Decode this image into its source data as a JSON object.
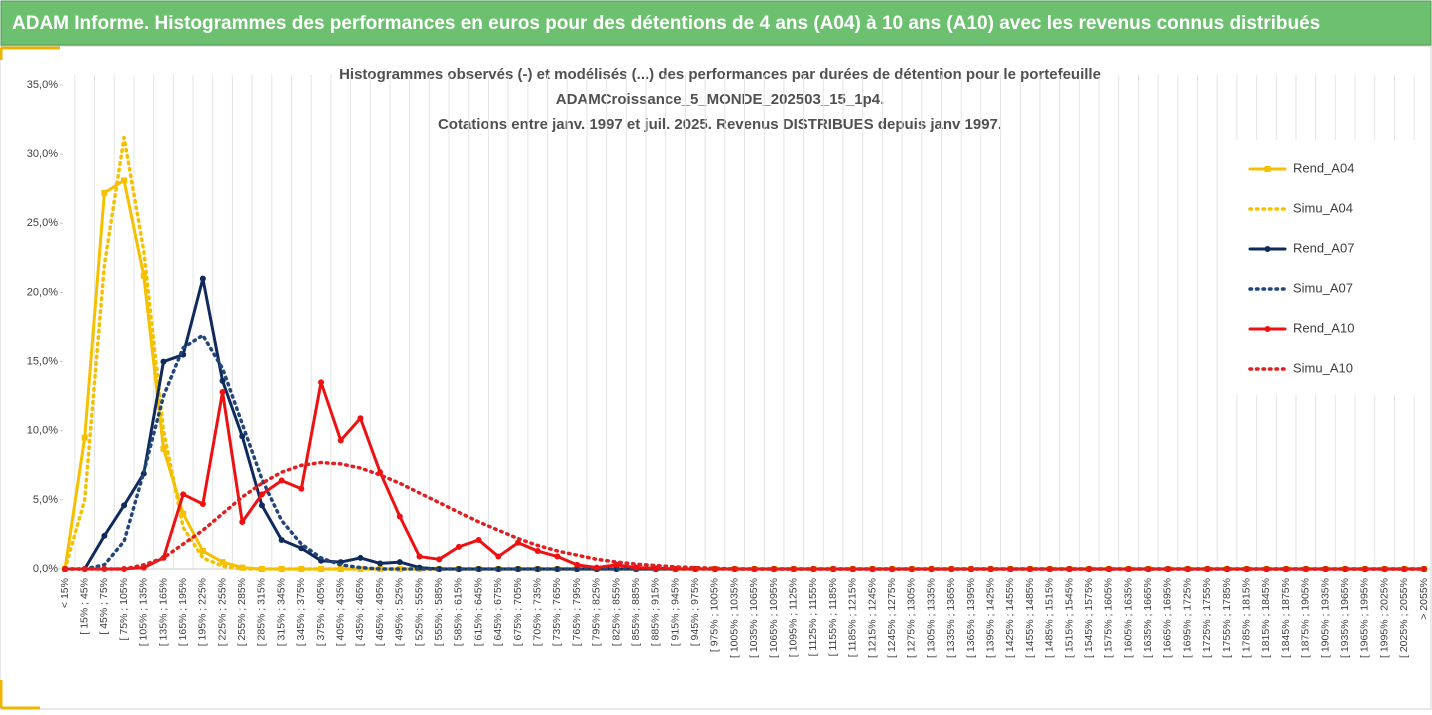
{
  "chart_data": {
    "type": "line",
    "header": "ADAM Informe. Histogrammes des performances en euros pour des détentions de 4 ans (A04) à 10 ans (A10) avec les revenus connus distribués",
    "title": [
      "Histogrammes observés (-) et modélisés (...) des performances par durées de détention pour le portefeuille",
      "ADAMCroissance_5_MONDE_202503_15_1p4.",
      "Cotations entre janv. 1997 et juil. 2025. Revenus DISTRIBUES depuis janv 1997."
    ],
    "categories": [
      "< 15%",
      "[ 15% ; 45%",
      "[ 45% ; 75%",
      "[ 75% ; 105%",
      "[ 105% ; 135%",
      "[ 135% ; 165%",
      "[ 165% ; 195%",
      "[ 195% ; 225%",
      "[ 225% ; 255%",
      "[ 255% ; 285%",
      "[ 285% ; 315%",
      "[ 315% ; 345%",
      "[ 345% ; 375%",
      "[ 375% ; 405%",
      "[ 405% ; 435%",
      "[ 435% ; 465%",
      "[ 465% ; 495%",
      "[ 495% ; 525%",
      "[ 525% ; 555%",
      "[ 555% ; 585%",
      "[ 585% ; 615%",
      "[ 615% ; 645%",
      "[ 645% ; 675%",
      "[ 675% ; 705%",
      "[ 705% ; 735%",
      "[ 735% ; 765%",
      "[ 765% ; 795%",
      "[ 795% ; 825%",
      "[ 825% ; 855%",
      "[ 855% ; 885%",
      "[ 885% ; 915%",
      "[ 915% ; 945%",
      "[ 945% ; 975%",
      "[ 975% ; 1005%",
      "[ 1005% ; 1035%",
      "[ 1035% ; 1065%",
      "[ 1065% ; 1095%",
      "[ 1095% ; 1125%",
      "[ 1125% ; 1155%",
      "[ 1155% ; 1185%",
      "[ 1185% ; 1215%",
      "[ 1215% ; 1245%",
      "[ 1245% ; 1275%",
      "[ 1275% ; 1305%",
      "[ 1305% ; 1335%",
      "[ 1335% ; 1365%",
      "[ 1365% ; 1395%",
      "[ 1395% ; 1425%",
      "[ 1425% ; 1455%",
      "[ 1455% ; 1485%",
      "[ 1485% ; 1515%",
      "[ 1515% ; 1545%",
      "[ 1545% ; 1575%",
      "[ 1575% ; 1605%",
      "[ 1605% ; 1635%",
      "[ 1635% ; 1665%",
      "[ 1665% ; 1695%",
      "[ 1695% ; 1725%",
      "[ 1725% ; 1755%",
      "[ 1755% ; 1785%",
      "[ 1785% ; 1815%",
      "[ 1815% ; 1845%",
      "[ 1845% ; 1875%",
      "[ 1875% ; 1905%",
      "[ 1905% ; 1935%",
      "[ 1935% ; 1965%",
      "[ 1965% ; 1995%",
      "[ 1995% ; 2025%",
      "[ 2025% ; 2055%",
      "> 2055%"
    ],
    "series": [
      {
        "name": "Rend_A04",
        "color": "#f5c000",
        "style": "solid",
        "marker": "square",
        "values": [
          0,
          9.5,
          27.2,
          28.1,
          21.2,
          8.7,
          4.0,
          1.3,
          0.5,
          0.1,
          0,
          0,
          0,
          0,
          0,
          0,
          0,
          0,
          0,
          0,
          0,
          0,
          0,
          0,
          0,
          0,
          0,
          0,
          0,
          0,
          0,
          0,
          0,
          0,
          0,
          0,
          0,
          0,
          0,
          0,
          0,
          0,
          0,
          0,
          0,
          0,
          0,
          0,
          0,
          0,
          0,
          0,
          0,
          0,
          0,
          0,
          0,
          0,
          0,
          0,
          0,
          0,
          0,
          0,
          0,
          0,
          0,
          0,
          0,
          0
        ]
      },
      {
        "name": "Simu_A04",
        "color": "#f5c000",
        "style": "dotted",
        "marker": "none",
        "values": [
          0,
          5,
          22,
          31.2,
          23,
          10,
          3,
          0.8,
          0.2,
          0,
          0,
          0,
          0,
          0,
          0,
          0,
          0,
          0,
          0,
          0,
          0,
          0,
          0,
          0,
          0,
          0,
          0,
          0,
          0,
          0,
          0,
          0,
          0,
          0,
          0,
          0,
          0,
          0,
          0,
          0,
          0,
          0,
          0,
          0,
          0,
          0,
          0,
          0,
          0,
          0,
          0,
          0,
          0,
          0,
          0,
          0,
          0,
          0,
          0,
          0,
          0,
          0,
          0,
          0,
          0,
          0,
          0,
          0,
          0,
          0
        ]
      },
      {
        "name": "Rend_A07",
        "color": "#0f2a5c",
        "style": "solid",
        "marker": "circle",
        "values": [
          0,
          0,
          2.4,
          4.6,
          6.9,
          15.0,
          15.5,
          21.0,
          13.6,
          9.6,
          4.6,
          2.1,
          1.5,
          0.6,
          0.5,
          0.8,
          0.4,
          0.5,
          0.1,
          0,
          0,
          0,
          0,
          0,
          0,
          0,
          0,
          0,
          0,
          0,
          0,
          0,
          0,
          0,
          0,
          0,
          0,
          0,
          0,
          0,
          0,
          0,
          0,
          0,
          0,
          0,
          0,
          0,
          0,
          0,
          0,
          0,
          0,
          0,
          0,
          0,
          0,
          0,
          0,
          0,
          0,
          0,
          0,
          0,
          0,
          0,
          0,
          0,
          0,
          0
        ]
      },
      {
        "name": "Simu_A07",
        "color": "#23467a",
        "style": "dotted",
        "marker": "none",
        "values": [
          0,
          0,
          0.3,
          2,
          7,
          12.5,
          16,
          16.9,
          14.5,
          10.5,
          6.5,
          3.5,
          1.8,
          0.8,
          0.3,
          0.1,
          0,
          0,
          0,
          0,
          0,
          0,
          0,
          0,
          0,
          0,
          0,
          0,
          0,
          0,
          0,
          0,
          0,
          0,
          0,
          0,
          0,
          0,
          0,
          0,
          0,
          0,
          0,
          0,
          0,
          0,
          0,
          0,
          0,
          0,
          0,
          0,
          0,
          0,
          0,
          0,
          0,
          0,
          0,
          0,
          0,
          0,
          0,
          0,
          0,
          0,
          0,
          0,
          0,
          0
        ]
      },
      {
        "name": "Rend_A10",
        "color": "#ee1111",
        "style": "solid",
        "marker": "circle",
        "values": [
          0,
          0,
          0,
          0,
          0.1,
          0.8,
          5.4,
          4.7,
          12.8,
          3.4,
          5.4,
          6.4,
          5.8,
          13.5,
          9.3,
          10.9,
          7.0,
          3.8,
          0.9,
          0.7,
          1.6,
          2.1,
          0.9,
          1.9,
          1.3,
          0.9,
          0.3,
          0.1,
          0.3,
          0.1,
          0.05,
          0,
          0,
          0,
          0,
          0,
          0,
          0,
          0,
          0,
          0,
          0,
          0,
          0,
          0,
          0,
          0,
          0,
          0,
          0,
          0,
          0,
          0,
          0,
          0,
          0,
          0,
          0,
          0,
          0,
          0,
          0,
          0,
          0,
          0,
          0,
          0,
          0,
          0,
          0
        ]
      },
      {
        "name": "Simu_A10",
        "color": "#e02020",
        "style": "dotted",
        "marker": "none",
        "values": [
          0,
          0,
          0,
          0,
          0.3,
          0.8,
          1.8,
          2.8,
          4.0,
          5.2,
          6.2,
          7.0,
          7.5,
          7.7,
          7.6,
          7.3,
          6.8,
          6.2,
          5.5,
          4.8,
          4.1,
          3.4,
          2.8,
          2.2,
          1.7,
          1.3,
          1.0,
          0.7,
          0.5,
          0.35,
          0.25,
          0.15,
          0.1,
          0.05,
          0,
          0,
          0,
          0,
          0,
          0,
          0,
          0,
          0,
          0,
          0,
          0,
          0,
          0,
          0,
          0,
          0,
          0,
          0,
          0,
          0,
          0,
          0,
          0,
          0,
          0,
          0,
          0,
          0,
          0,
          0,
          0,
          0,
          0,
          0,
          0
        ]
      }
    ],
    "ylim": [
      0,
      35
    ],
    "yticks": [
      {
        "value": 0,
        "label": "0,0%"
      },
      {
        "value": 5,
        "label": "5,0%"
      },
      {
        "value": 10,
        "label": "10,0%"
      },
      {
        "value": 15,
        "label": "15,0%"
      },
      {
        "value": 20,
        "label": "20,0%"
      },
      {
        "value": 25,
        "label": "25,0%"
      },
      {
        "value": 30,
        "label": "30,0%"
      },
      {
        "value": 35,
        "label": "35,0%"
      }
    ],
    "grid": {
      "x": true,
      "y": false
    },
    "legend": "right"
  }
}
